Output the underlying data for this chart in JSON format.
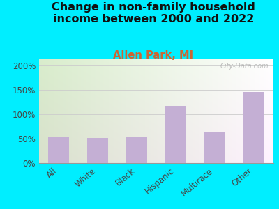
{
  "title": "Change in non-family household\nincome between 2000 and 2022",
  "subtitle": "Allen Park, MI",
  "categories": [
    "All",
    "White",
    "Black",
    "Hispanic",
    "Multirace",
    "Other"
  ],
  "values": [
    55,
    52,
    53,
    117,
    65,
    146
  ],
  "bar_color": "#c4afd4",
  "title_fontsize": 11.5,
  "subtitle_fontsize": 10.5,
  "subtitle_color": "#cc6633",
  "title_color": "#111111",
  "ylabel_ticks": [
    "0%",
    "50%",
    "100%",
    "150%",
    "200%"
  ],
  "ytick_values": [
    0,
    50,
    100,
    150,
    200
  ],
  "ylim": [
    0,
    215
  ],
  "background_outer": "#00eeff",
  "watermark_text": "City-Data.com",
  "tick_label_color": "#444444",
  "tick_label_fontsize": 8.5,
  "xlabel_fontsize": 8.5,
  "bar_width": 0.55,
  "grid_color": "#cccccc"
}
